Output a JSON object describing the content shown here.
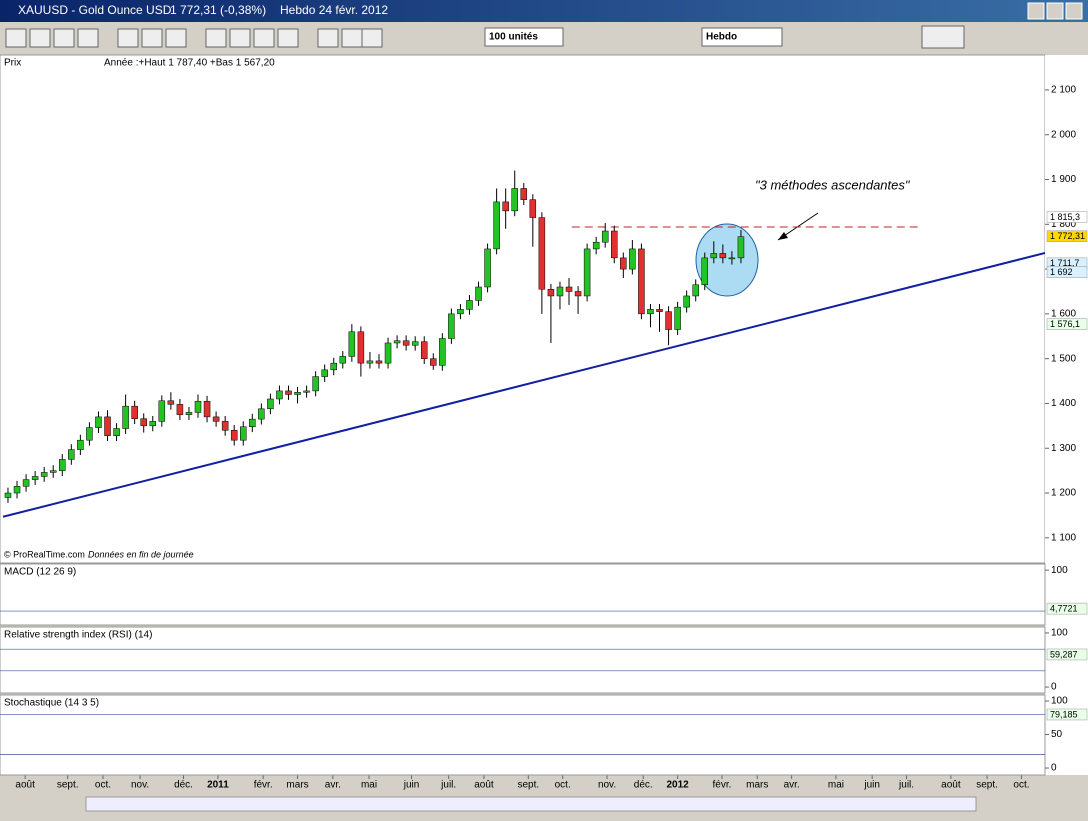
{
  "window": {
    "symbol": "XAUUSD - Gold Ounce USD",
    "price": "1 772,31 (-0,38%)",
    "period": "Hebdo  24 févr. 2012"
  },
  "toolbar": {
    "units": "100 unités",
    "period": "Hebdo"
  },
  "chart_data": {
    "type": "candlestick",
    "panel_label": "Prix",
    "range_info": "Année :+Haut 1 787,40 +Bas 1 567,20",
    "credit": "© ProRealTime.com",
    "note": "Données en fin de journée",
    "annotation": "\"3 méthodes ascendantes\"",
    "up_color": "#22c322",
    "down_color": "#e03030",
    "x": [
      1,
      2,
      3,
      4,
      5,
      6,
      7,
      8,
      9,
      10,
      11,
      12,
      13,
      14,
      15,
      16,
      17,
      18,
      19,
      20,
      21,
      22,
      23,
      24,
      25,
      26,
      27,
      28,
      29,
      30,
      31,
      32,
      33,
      34,
      35,
      36,
      37,
      38,
      39,
      40,
      41,
      42,
      43,
      44,
      45,
      46,
      47,
      48,
      49,
      50,
      51,
      52,
      53,
      54,
      55,
      56,
      57,
      58,
      59,
      60,
      61,
      62,
      63,
      64,
      65,
      66,
      67,
      68,
      69,
      70,
      71,
      72,
      73,
      74,
      75,
      76,
      77,
      78,
      79,
      80,
      81,
      82
    ],
    "open": [
      1190,
      1200,
      1215,
      1230,
      1237,
      1246,
      1250,
      1275,
      1297,
      1318,
      1346,
      1370,
      1328,
      1344,
      1394,
      1366,
      1350,
      1360,
      1406,
      1398,
      1375,
      1380,
      1405,
      1370,
      1360,
      1340,
      1318,
      1348,
      1365,
      1388,
      1410,
      1428,
      1420,
      1425,
      1428,
      1460,
      1475,
      1490,
      1505,
      1560,
      1490,
      1495,
      1490,
      1535,
      1540,
      1530,
      1538,
      1500,
      1485,
      1545,
      1600,
      1610,
      1630,
      1660,
      1745,
      1850,
      1830,
      1880,
      1855,
      1815,
      1655,
      1640,
      1660,
      1650,
      1640,
      1745,
      1760,
      1785,
      1725,
      1700,
      1745,
      1600,
      1610,
      1605,
      1565,
      1615,
      1640,
      1665,
      1725,
      1735,
      1725,
      1725
    ],
    "high": [
      1212,
      1227,
      1242,
      1249,
      1258,
      1262,
      1287,
      1309,
      1330,
      1358,
      1382,
      1385,
      1356,
      1420,
      1406,
      1378,
      1372,
      1418,
      1425,
      1410,
      1392,
      1420,
      1417,
      1382,
      1372,
      1352,
      1360,
      1377,
      1400,
      1422,
      1440,
      1440,
      1437,
      1440,
      1472,
      1487,
      1502,
      1517,
      1577,
      1572,
      1515,
      1510,
      1547,
      1552,
      1552,
      1550,
      1550,
      1512,
      1557,
      1612,
      1622,
      1642,
      1672,
      1757,
      1880,
      1880,
      1920,
      1892,
      1867,
      1827,
      1667,
      1672,
      1680,
      1662,
      1757,
      1772,
      1803,
      1797,
      1737,
      1765,
      1757,
      1622,
      1622,
      1617,
      1627,
      1652,
      1677,
      1737,
      1762,
      1755,
      1740,
      1787.4
    ],
    "low": [
      1178,
      1188,
      1203,
      1218,
      1225,
      1234,
      1238,
      1263,
      1285,
      1306,
      1334,
      1316,
      1316,
      1332,
      1354,
      1335,
      1338,
      1348,
      1386,
      1363,
      1363,
      1368,
      1358,
      1348,
      1328,
      1306,
      1306,
      1336,
      1353,
      1376,
      1398,
      1408,
      1400,
      1413,
      1416,
      1448,
      1463,
      1478,
      1493,
      1460,
      1478,
      1478,
      1478,
      1523,
      1518,
      1518,
      1488,
      1475,
      1473,
      1533,
      1588,
      1598,
      1618,
      1648,
      1733,
      1790,
      1818,
      1843,
      1750,
      1600,
      1535,
      1610,
      1620,
      1600,
      1628,
      1733,
      1748,
      1713,
      1680,
      1688,
      1588,
      1570,
      1560,
      1530,
      1553,
      1603,
      1628,
      1653,
      1713,
      1713,
      1710,
      1713
    ],
    "close": [
      1200,
      1215,
      1230,
      1237,
      1246,
      1250,
      1275,
      1297,
      1318,
      1346,
      1370,
      1328,
      1344,
      1394,
      1366,
      1350,
      1360,
      1406,
      1398,
      1375,
      1380,
      1405,
      1370,
      1360,
      1340,
      1318,
      1348,
      1365,
      1388,
      1410,
      1428,
      1420,
      1425,
      1428,
      1460,
      1475,
      1490,
      1505,
      1560,
      1490,
      1495,
      1490,
      1535,
      1540,
      1530,
      1538,
      1500,
      1485,
      1545,
      1600,
      1610,
      1630,
      1660,
      1745,
      1850,
      1830,
      1880,
      1855,
      1815,
      1655,
      1640,
      1660,
      1650,
      1640,
      1745,
      1760,
      1785,
      1725,
      1700,
      1745,
      1600,
      1610,
      1605,
      1565,
      1615,
      1640,
      1665,
      1725,
      1735,
      1725,
      1725,
      1772.31
    ],
    "xlim": [
      0.45,
      115.6
    ],
    "xticks": [
      {
        "value": 2.9,
        "label": "août"
      },
      {
        "value": 7.6,
        "label": "sept."
      },
      {
        "value": 11.5,
        "label": "oct."
      },
      {
        "value": 15.6,
        "label": "nov."
      },
      {
        "value": 20.4,
        "label": "déc."
      },
      {
        "value": 24.2,
        "label": "2011"
      },
      {
        "value": 29.2,
        "label": "févr."
      },
      {
        "value": 33,
        "label": "mars"
      },
      {
        "value": 36.9,
        "label": "avr."
      },
      {
        "value": 40.9,
        "label": "mai"
      },
      {
        "value": 45.6,
        "label": "juin"
      },
      {
        "value": 49.7,
        "label": "juil."
      },
      {
        "value": 53.6,
        "label": "août"
      },
      {
        "value": 58.5,
        "label": "sept."
      },
      {
        "value": 62.3,
        "label": "oct."
      },
      {
        "value": 67.2,
        "label": "nov."
      },
      {
        "value": 71.2,
        "label": "déc."
      },
      {
        "value": 75,
        "label": "2012"
      },
      {
        "value": 79.9,
        "label": "févr."
      },
      {
        "value": 83.8,
        "label": "mars"
      },
      {
        "value": 87.6,
        "label": "avr."
      },
      {
        "value": 92.5,
        "label": "mai"
      },
      {
        "value": 96.5,
        "label": "juin"
      },
      {
        "value": 100.3,
        "label": "juil."
      },
      {
        "value": 105.2,
        "label": "août"
      },
      {
        "value": 109.2,
        "label": "sept."
      },
      {
        "value": 113,
        "label": "oct."
      }
    ],
    "ylim": [
      1046,
      2178
    ],
    "yticks": [
      {
        "value": 2100,
        "label": "2 100"
      },
      {
        "value": 2000,
        "label": "2 000"
      },
      {
        "value": 1900,
        "label": "1 900"
      },
      {
        "value": 1800,
        "label": "1 800"
      },
      {
        "value": 1700,
        "label": "1 700"
      },
      {
        "value": 1600,
        "label": "1 600"
      },
      {
        "value": 1500,
        "label": "1 500"
      },
      {
        "value": 1400,
        "label": "1 400"
      },
      {
        "value": 1300,
        "label": "1 300"
      },
      {
        "value": 1200,
        "label": "1 200"
      },
      {
        "value": 1100,
        "label": "1 100"
      }
    ],
    "price_labels": [
      {
        "value": 1815.3,
        "label": "1 815,3",
        "color": "#ffffff"
      },
      {
        "value": 1772.31,
        "label": "1 772,31",
        "color": "#ffd800"
      },
      {
        "value": 1711.7,
        "label": "1 711,7",
        "color": "#d8f0ff"
      },
      {
        "value": 1692,
        "label": "1 692",
        "color": "#d8f0ff"
      },
      {
        "value": 1576.1,
        "label": "1 576,1",
        "color": "#e8ffe8"
      }
    ],
    "trendline": {
      "x": [
        0.45,
        115.6
      ],
      "y": [
        1147,
        1736
      ],
      "color": "#1020a0"
    },
    "resistance": {
      "x": [
        63.3,
        102
      ],
      "y": 1794,
      "color": "#c02020"
    }
  },
  "indicators": [
    {
      "title": "MACD (12 26 9)",
      "ylim": [
        -34,
        115
      ],
      "yticks": [
        100
      ],
      "levels": [
        0
      ],
      "last": {
        "value": 4.7721,
        "label": "4,7721"
      }
    },
    {
      "title": "Relative strength index (RSI) (14)",
      "ylim": [
        -11,
        111
      ],
      "yticks": [
        100,
        0
      ],
      "levels": [
        70,
        30
      ],
      "last": {
        "value": 59.287,
        "label": "59,287"
      }
    },
    {
      "title": "Stochastique (14 3 5)",
      "ylim": [
        -10.4,
        109
      ],
      "yticks": [
        100,
        50,
        0
      ],
      "levels": [
        80,
        20
      ],
      "last": {
        "value": 79.185,
        "label": "79,185"
      }
    }
  ]
}
